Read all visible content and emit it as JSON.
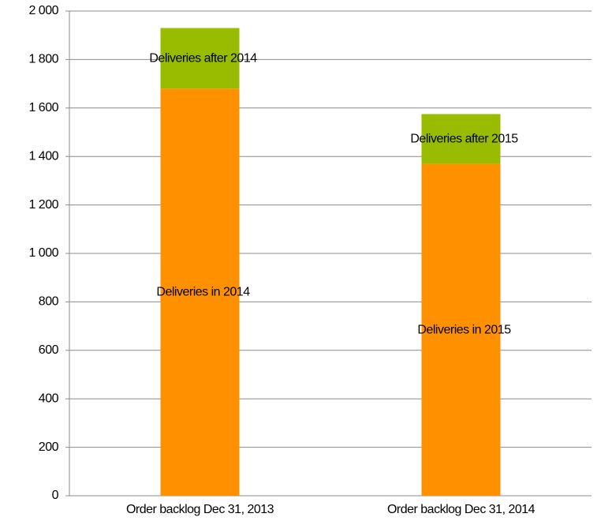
{
  "chart_data": {
    "type": "stacked_bar",
    "categories": [
      "Order backlog Dec 31, 2013",
      "Order backlog Dec 31, 2014"
    ],
    "series": [
      {
        "color": "#ff9100",
        "values": [
          1680,
          1370
        ],
        "labels": [
          "Deliveries in 2014",
          "Deliveries in 2015"
        ]
      },
      {
        "color": "#99bb00",
        "values": [
          250,
          205
        ],
        "labels": [
          "Deliveries after 2014",
          "Deliveries after 2015"
        ]
      }
    ],
    "ylim": [
      0,
      2000
    ],
    "yticks": [
      0,
      200,
      400,
      600,
      800,
      {
        "value": 1000,
        "label": "1 000"
      },
      {
        "value": 1200,
        "label": "1 200"
      },
      {
        "value": 1400,
        "label": "1 400"
      },
      {
        "value": 1600,
        "label": "1 600"
      },
      {
        "value": 1800,
        "label": "1 800"
      },
      {
        "value": 2000,
        "label": "2 000"
      }
    ],
    "grid": true
  }
}
